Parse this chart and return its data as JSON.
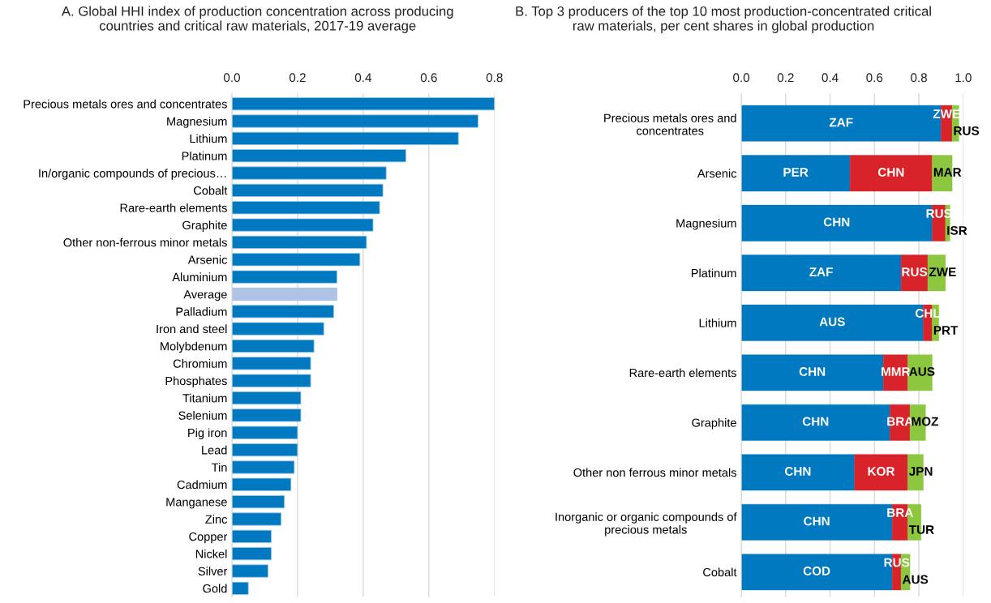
{
  "chart_data": [
    {
      "type": "bar",
      "orientation": "horizontal",
      "title": "A. Global HHI index of production concentration across producing\ncountries and critical raw materials, 2017-19 average",
      "categories": [
        "Precious metals ores and concentrates",
        "Magnesium",
        "Lithium",
        "Platinum",
        "In/organic compounds of precious…",
        "Cobalt",
        "Rare-earth elements",
        "Graphite",
        "Other non-ferrous minor metals",
        "Arsenic",
        "Aluminium",
        "Average",
        "Palladium",
        "Iron and steel",
        "Molybdenum",
        "Chromium",
        "Phosphates",
        "Titanium",
        "Selenium",
        "Pig iron",
        "Lead",
        "Tin",
        "Cadmium",
        "Manganese",
        "Zinc",
        "Copper",
        "Nickel",
        "Silver",
        "Gold"
      ],
      "values": [
        0.8,
        0.75,
        0.69,
        0.53,
        0.47,
        0.46,
        0.45,
        0.43,
        0.41,
        0.39,
        0.32,
        0.32,
        0.31,
        0.28,
        0.25,
        0.24,
        0.24,
        0.21,
        0.21,
        0.2,
        0.2,
        0.19,
        0.18,
        0.16,
        0.15,
        0.12,
        0.12,
        0.11,
        0.05
      ],
      "colors": [
        "#0079c1",
        "#0079c1",
        "#0079c1",
        "#0079c1",
        "#0079c1",
        "#0079c1",
        "#0079c1",
        "#0079c1",
        "#0079c1",
        "#0079c1",
        "#0079c1",
        "#afc3e6",
        "#0079c1",
        "#0079c1",
        "#0079c1",
        "#0079c1",
        "#0079c1",
        "#0079c1",
        "#0079c1",
        "#0079c1",
        "#0079c1",
        "#0079c1",
        "#0079c1",
        "#0079c1",
        "#0079c1",
        "#0079c1",
        "#0079c1",
        "#0079c1",
        "#0079c1"
      ],
      "xlim": [
        0,
        0.8
      ],
      "xticks": [
        {
          "value": 0,
          "label": "0.0"
        },
        {
          "value": 0.2,
          "label": "0.2"
        },
        {
          "value": 0.4,
          "label": "0.4"
        },
        {
          "value": 0.6,
          "label": "0.6"
        },
        {
          "value": 0.8,
          "label": "0.8"
        }
      ],
      "grid": "x"
    },
    {
      "type": "bar",
      "orientation": "horizontal",
      "stacked": true,
      "title": "B. Top 3 producers of the top 10 most production-concentrated critical\nraw materials, per cent shares in global production",
      "categories": [
        "Precious metals ores and\nconcentrates",
        "Arsenic",
        "Magnesium",
        "Platinum",
        "Lithium",
        "Rare-earth elements",
        "Graphite",
        "Other non ferrous minor metals",
        "Inorganic or organic compounds of\nprecious metals",
        "Cobalt"
      ],
      "series": [
        {
          "color": "#0079c1",
          "values": [
            0.9,
            0.49,
            0.86,
            0.72,
            0.82,
            0.64,
            0.67,
            0.51,
            0.68,
            0.68
          ],
          "value_labels": [
            "ZAF",
            "PER",
            "CHN",
            "ZAF",
            "AUS",
            "CHN",
            "CHN",
            "CHN",
            "CHN",
            "COD"
          ]
        },
        {
          "color": "#d9232a",
          "values": [
            0.05,
            0.37,
            0.06,
            0.12,
            0.04,
            0.11,
            0.09,
            0.24,
            0.07,
            0.04
          ],
          "value_labels": [
            "ZWE",
            "CHN",
            "RUS",
            "RUS",
            "CHL",
            "MMR",
            "BRA",
            "KOR",
            "BRA",
            "RUS"
          ]
        },
        {
          "color": "#8dc63f",
          "values": [
            0.03,
            0.09,
            0.02,
            0.08,
            0.03,
            0.11,
            0.07,
            0.07,
            0.06,
            0.04
          ],
          "value_labels": [
            "RUS",
            "MAR",
            "ISR",
            "ZWE",
            "PRT",
            "AUS",
            "MOZ",
            "JPN",
            "TUR",
            "AUS"
          ]
        }
      ],
      "xlim": [
        0,
        1.0
      ],
      "xticks": [
        {
          "value": 0,
          "label": "0.0"
        },
        {
          "value": 0.2,
          "label": "0.2"
        },
        {
          "value": 0.4,
          "label": "0.4"
        },
        {
          "value": 0.6,
          "label": "0.6"
        },
        {
          "value": 0.8,
          "label": "0.8"
        },
        {
          "value": 1.0,
          "label": "1.0"
        }
      ],
      "grid": "x"
    }
  ]
}
